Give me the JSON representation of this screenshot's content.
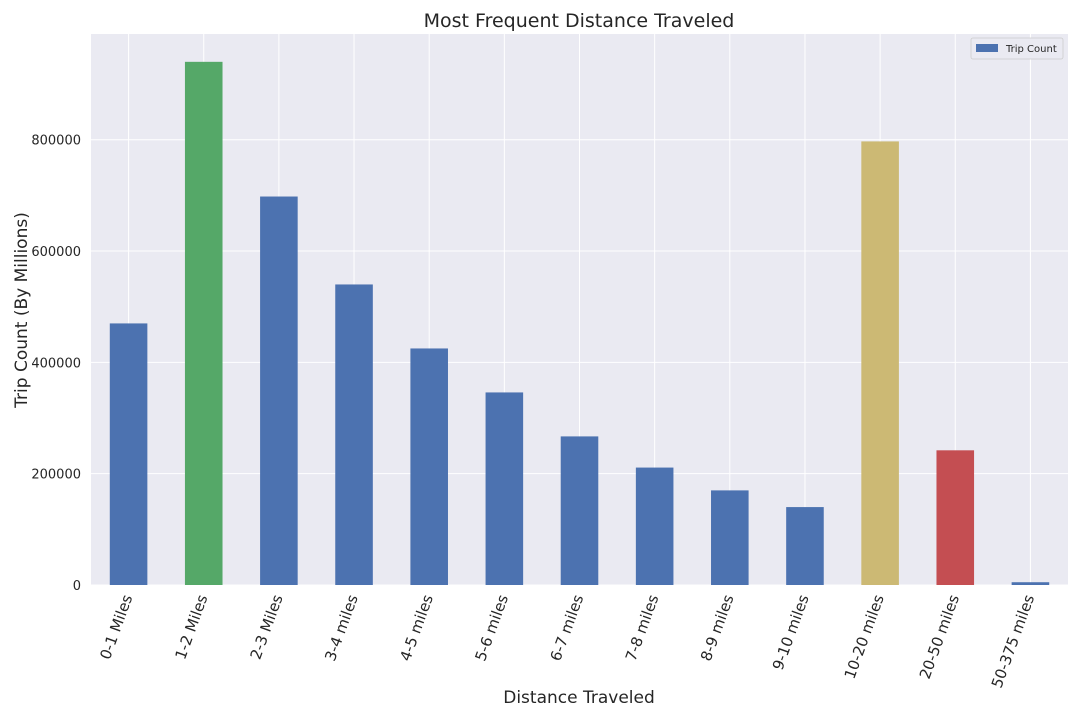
{
  "chart_data": {
    "type": "bar",
    "title": "Most Frequent Distance Traveled",
    "xlabel": "Distance Traveled",
    "ylabel": "Trip Count (By Millions)",
    "ylim": [
      0,
      990000
    ],
    "yticks": [
      "0",
      "200000",
      "400000",
      "600000",
      "800000"
    ],
    "categories": [
      "0-1 Miles",
      "1-2 Miles",
      "2-3 Miles",
      "3-4 miles",
      "4-5 miles",
      "5-6 miles",
      "6-7 miles",
      "7-8 miles",
      "8-9 miles",
      "9-10 miles",
      "10-20 miles",
      "20-50 miles",
      "50-375 miles"
    ],
    "series": [
      {
        "name": "Trip Count",
        "values": [
          470000,
          940000,
          698000,
          540000,
          425000,
          346000,
          267000,
          211000,
          170000,
          140000,
          797000,
          242000,
          5000
        ]
      }
    ],
    "bar_colors": [
      "#4c72b0",
      "#55a868",
      "#4c72b0",
      "#4c72b0",
      "#4c72b0",
      "#4c72b0",
      "#4c72b0",
      "#4c72b0",
      "#4c72b0",
      "#4c72b0",
      "#ccb974",
      "#c44e52",
      "#4c72b0"
    ],
    "legend_color": "#4c72b0",
    "legend_position": "top-right",
    "grid": true,
    "background": "#eaeaf2"
  }
}
